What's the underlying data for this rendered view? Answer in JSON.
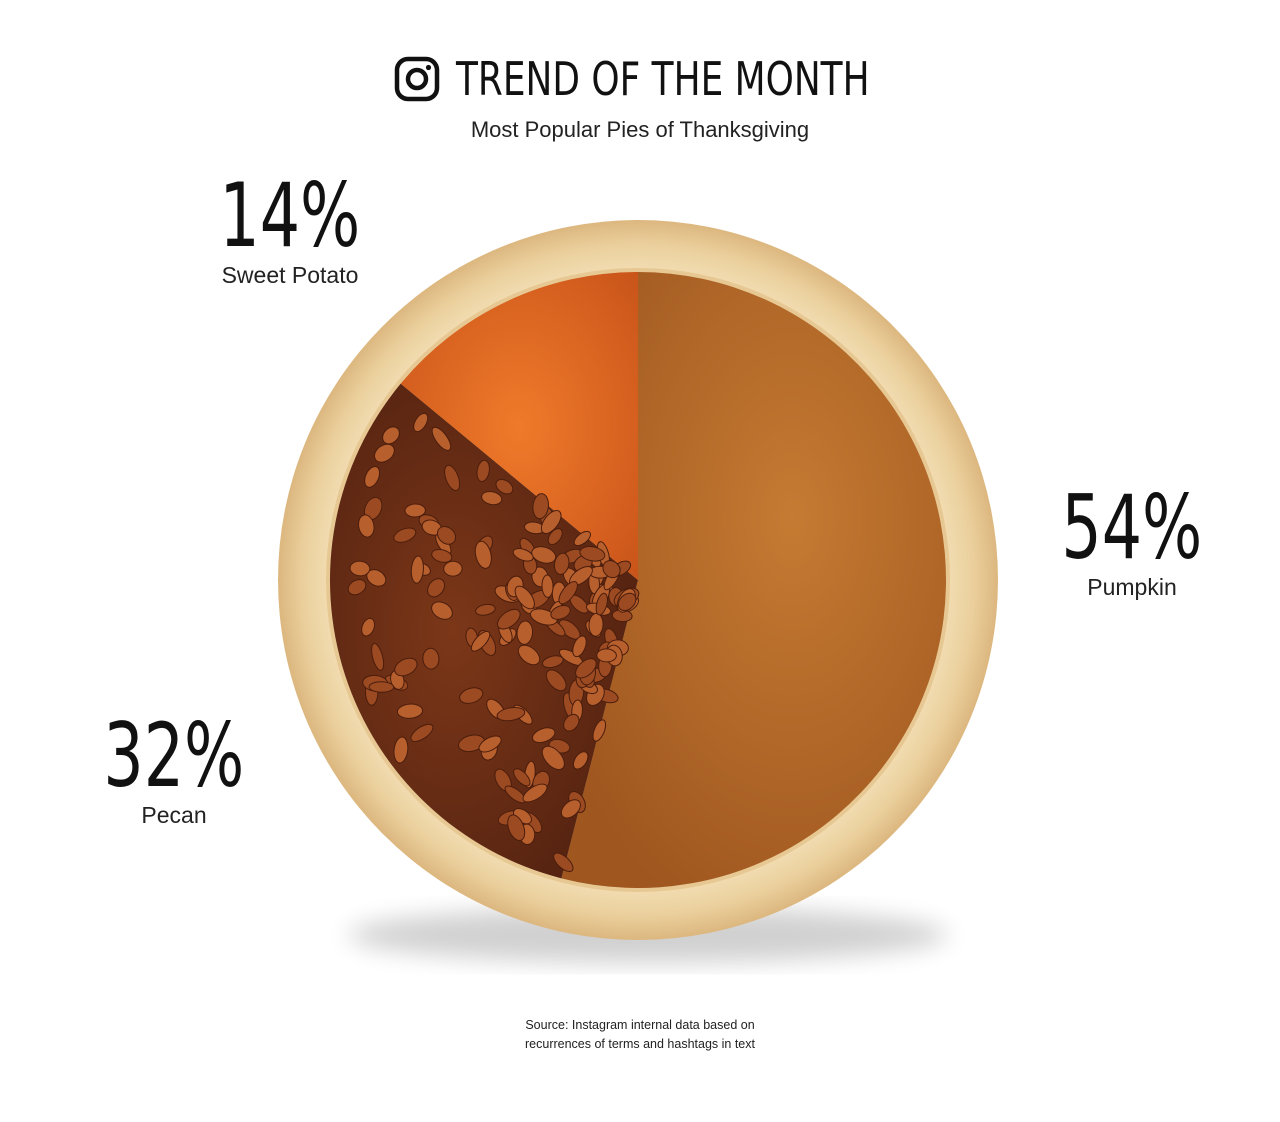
{
  "header": {
    "title": "TREND OF THE MONTH",
    "subtitle": "Most Popular Pies of Thanksgiving",
    "icon": "instagram-icon"
  },
  "chart_data": {
    "type": "pie",
    "title": "TREND OF THE MONTH",
    "subtitle": "Most Popular Pies of Thanksgiving",
    "slices": [
      {
        "label": "Pumpkin",
        "value": 54,
        "display": "54%",
        "color": "#b66a27"
      },
      {
        "label": "Pecan",
        "value": 32,
        "display": "32%",
        "color": "#6e2f15"
      },
      {
        "label": "Sweet Potato",
        "value": 14,
        "display": "14%",
        "color": "#e0661e"
      }
    ],
    "start": "top",
    "direction": "clockwise",
    "legend": "none"
  },
  "source": {
    "line1": "Source: Instagram internal data based on",
    "line2": "recurrences of terms and hashtags in text"
  },
  "colors": {
    "crust": "#ecd3a3",
    "crust_edge": "#d8b47c",
    "text": "#111111"
  }
}
